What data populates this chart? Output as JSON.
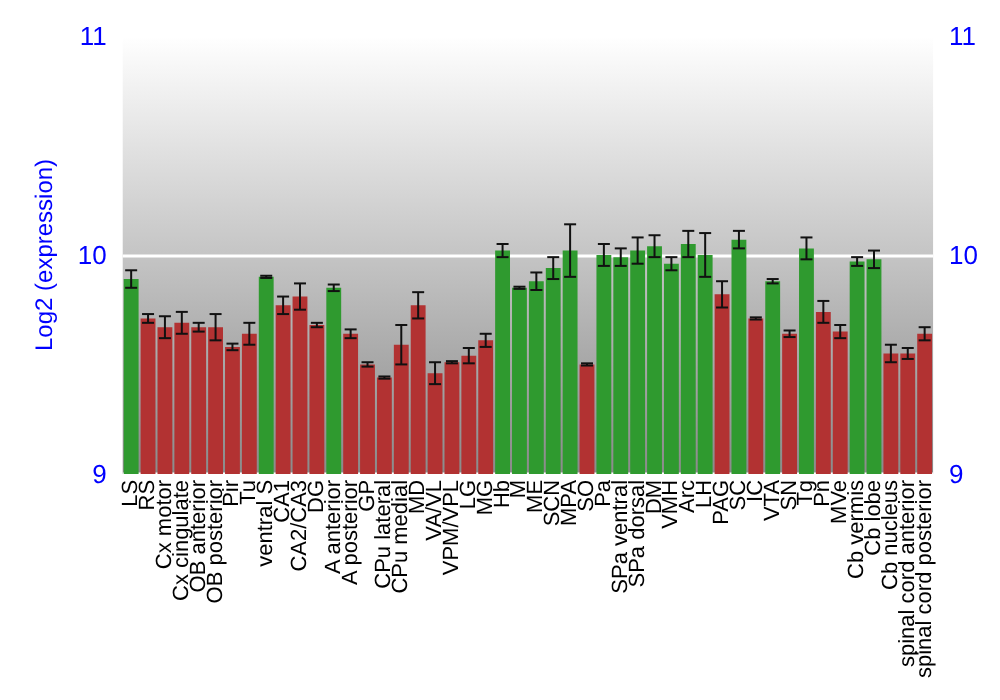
{
  "chart_data": {
    "type": "bar",
    "ylabel": "Log2 (expression)",
    "categories": [
      "LS",
      "RS",
      "Cx motor",
      "Cx cingulate",
      "OB anterior",
      "OB posterior",
      "Pir",
      "Tu",
      "ventral S",
      "CA1",
      "CA2/CA3",
      "DG",
      "A anterior",
      "A posterior",
      "GP",
      "CPu lateral",
      "CPu medial",
      "MD",
      "VA/VL",
      "VPM/VPL",
      "LG",
      "MG",
      "Hb",
      "M",
      "ME",
      "SCN",
      "MPA",
      "SO",
      "Pa",
      "SPa ventral",
      "SPa dorsal",
      "DM",
      "VMH",
      "Arc",
      "LH",
      "PAG",
      "SC",
      "IC",
      "VTA",
      "SN",
      "Tg",
      "Pn",
      "MVe",
      "Cb vermis",
      "Cb lobe",
      "Cb nucleus",
      "spinal cord anterior",
      "spinal cord posterior"
    ],
    "values": [
      9.89,
      9.71,
      9.67,
      9.69,
      9.67,
      9.67,
      9.58,
      9.64,
      9.9,
      9.77,
      9.81,
      9.68,
      9.85,
      9.64,
      9.5,
      9.44,
      9.59,
      9.77,
      9.46,
      9.51,
      9.54,
      9.61,
      10.02,
      9.85,
      9.88,
      9.94,
      10.02,
      9.5,
      10.0,
      9.99,
      10.02,
      10.04,
      9.96,
      10.05,
      10.0,
      9.82,
      10.07,
      9.71,
      9.88,
      9.64,
      10.03,
      9.74,
      9.65,
      9.97,
      9.98,
      9.55,
      9.55,
      9.64
    ],
    "errors": [
      0.04,
      0.02,
      0.05,
      0.05,
      0.02,
      0.06,
      0.015,
      0.05,
      0.005,
      0.04,
      0.06,
      0.01,
      0.015,
      0.02,
      0.01,
      0.005,
      0.09,
      0.06,
      0.05,
      0.005,
      0.035,
      0.03,
      0.03,
      0.005,
      0.04,
      0.05,
      0.12,
      0.005,
      0.05,
      0.04,
      0.06,
      0.05,
      0.03,
      0.06,
      0.1,
      0.06,
      0.04,
      0.005,
      0.01,
      0.015,
      0.05,
      0.05,
      0.03,
      0.02,
      0.04,
      0.04,
      0.025,
      0.03
    ],
    "colors": [
      "#2f9a2f",
      "#b23232",
      "#b23232",
      "#b23232",
      "#b23232",
      "#b23232",
      "#b23232",
      "#b23232",
      "#2f9a2f",
      "#b23232",
      "#b23232",
      "#b23232",
      "#2f9a2f",
      "#b23232",
      "#b23232",
      "#b23232",
      "#b23232",
      "#b23232",
      "#b23232",
      "#b23232",
      "#b23232",
      "#b23232",
      "#2f9a2f",
      "#2f9a2f",
      "#2f9a2f",
      "#2f9a2f",
      "#2f9a2f",
      "#b23232",
      "#2f9a2f",
      "#2f9a2f",
      "#2f9a2f",
      "#2f9a2f",
      "#2f9a2f",
      "#2f9a2f",
      "#2f9a2f",
      "#b23232",
      "#2f9a2f",
      "#b23232",
      "#2f9a2f",
      "#b23232",
      "#2f9a2f",
      "#b23232",
      "#b23232",
      "#2f9a2f",
      "#2f9a2f",
      "#b23232",
      "#b23232",
      "#b23232"
    ],
    "ylim": [
      9,
      11
    ],
    "yticks": [
      9,
      10,
      11
    ],
    "y2lim": [
      9,
      11
    ],
    "y2ticks": [
      9,
      10,
      11
    ],
    "grid": "y"
  }
}
